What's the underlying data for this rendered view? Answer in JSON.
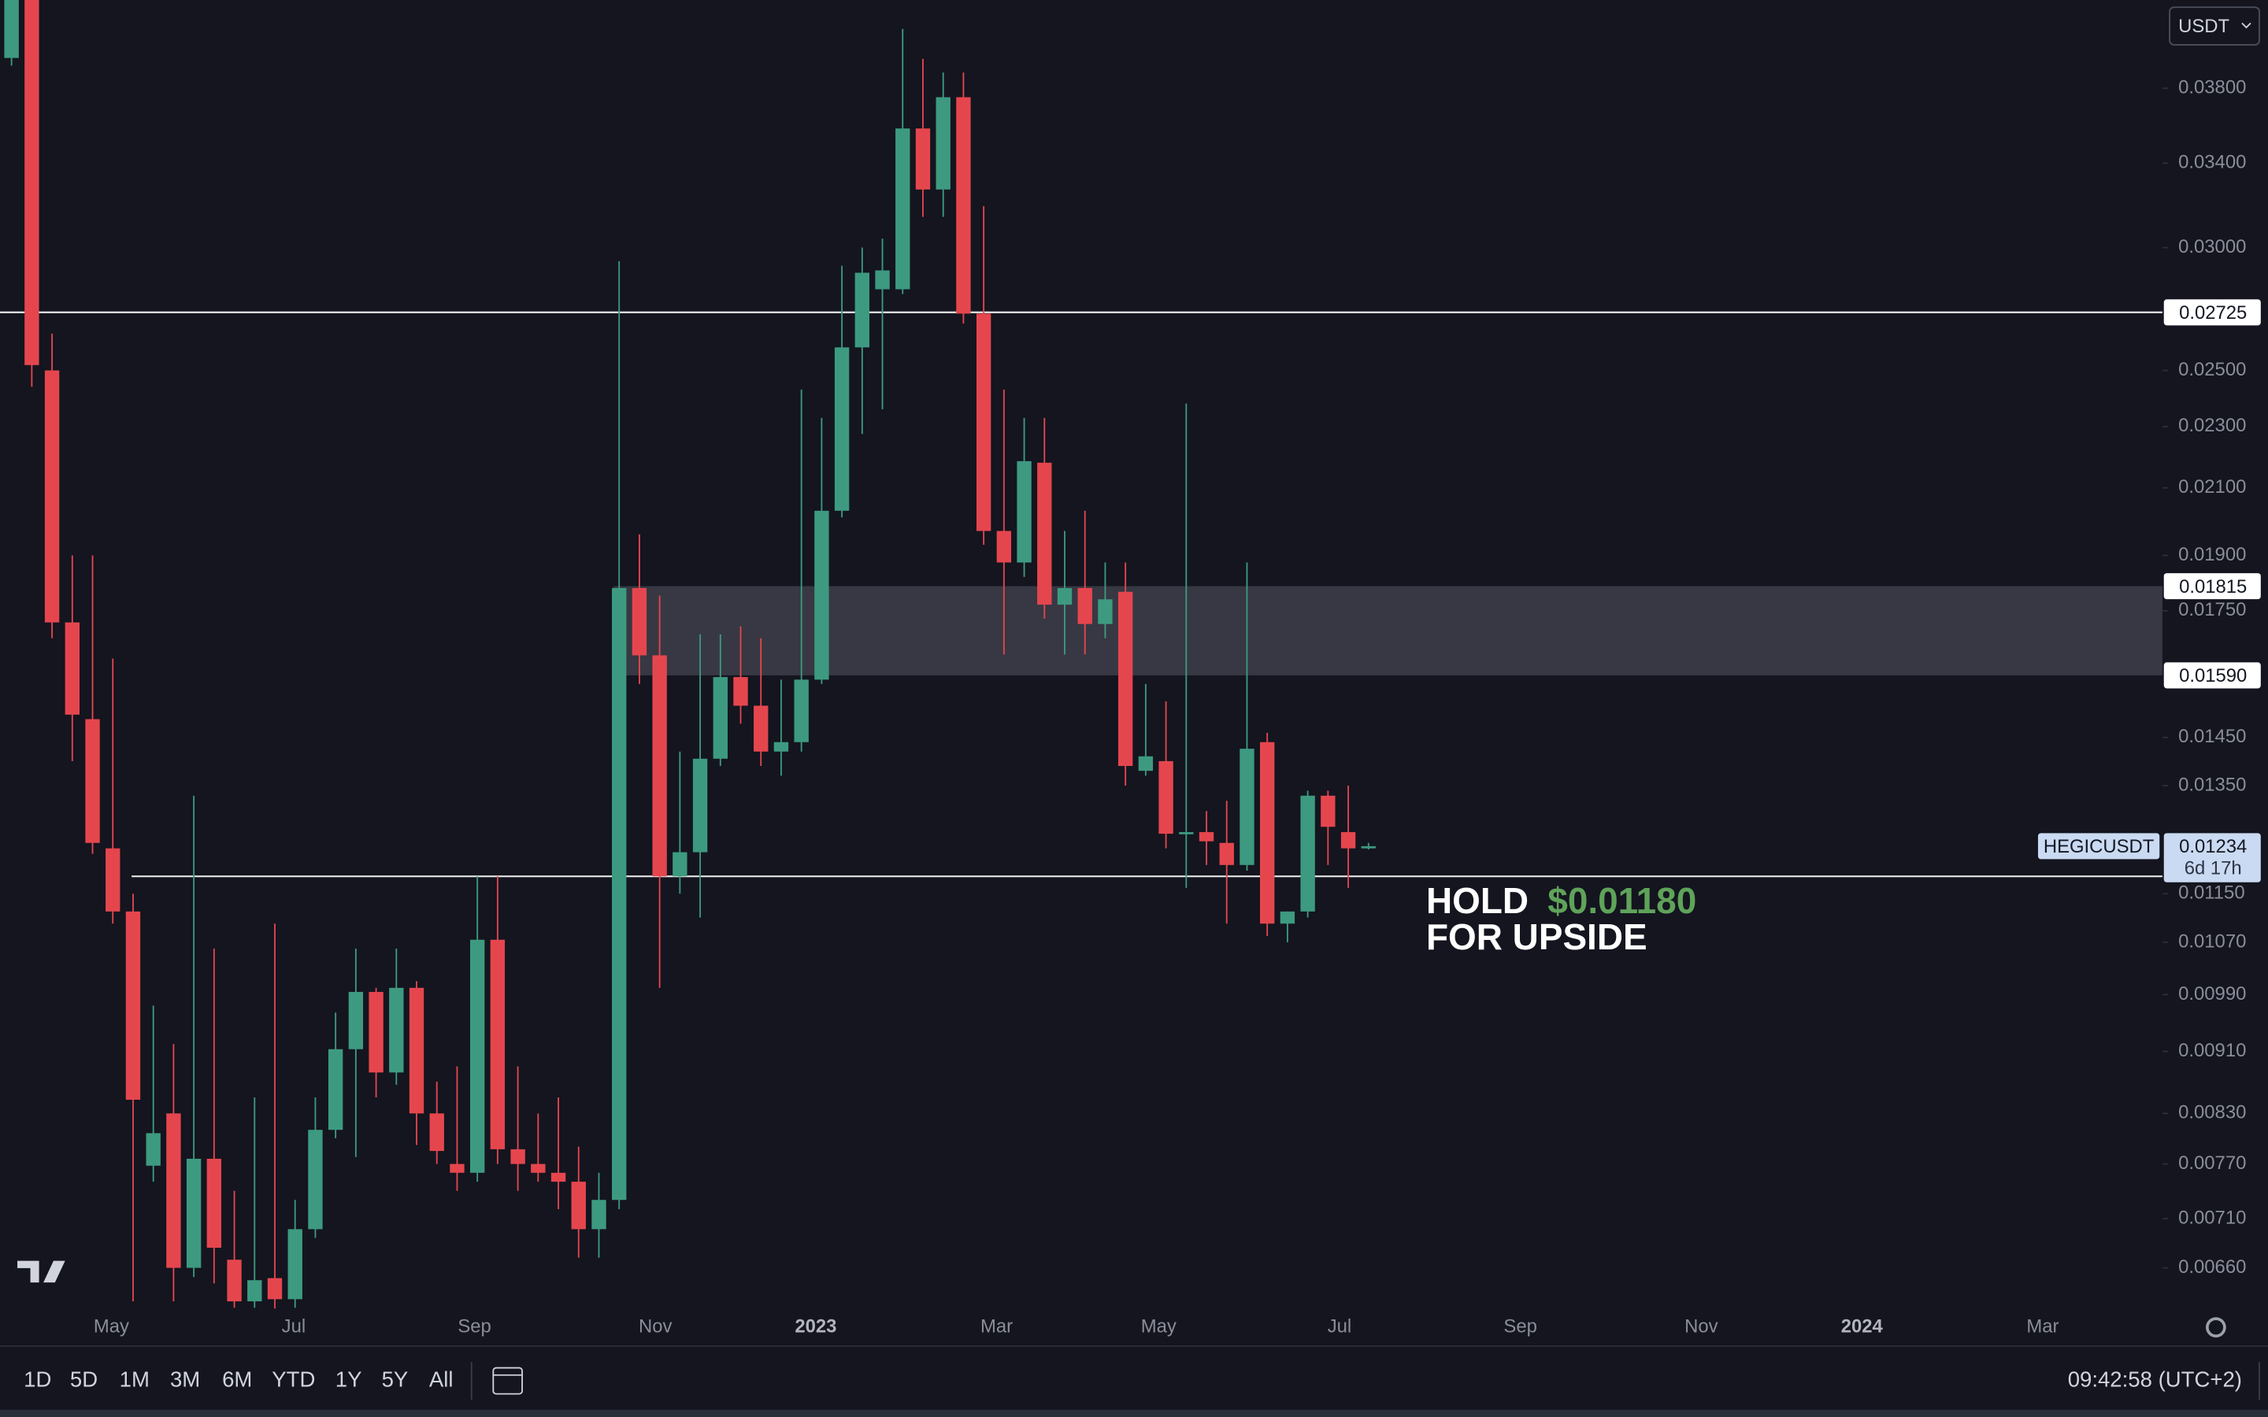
{
  "currency": "USDT",
  "toolbar": {
    "ranges": [
      "1D",
      "5D",
      "1M",
      "3M",
      "6M",
      "YTD",
      "1Y",
      "5Y",
      "All"
    ],
    "time": "09:42:58 (UTC+2)"
  },
  "chart_data": {
    "type": "candlestick",
    "open": [
      0.03975,
      0.045,
      0.025,
      0.0172,
      0.0149,
      0.0123,
      0.0112,
      0.00768,
      0.0083,
      0.0066,
      0.00776,
      0.00668,
      0.00628,
      0.0065,
      0.0063,
      0.00699,
      0.0081,
      0.00913,
      0.00994,
      0.00882,
      0.01,
      0.0083,
      0.0077,
      0.0076,
      0.01074,
      0.00787,
      0.0077,
      0.0076,
      0.0075,
      0.00699,
      0.0073,
      0.0181,
      0.01638,
      0.0118,
      0.01223,
      0.01405,
      0.01586,
      0.0152,
      0.0142,
      0.0144,
      0.0158,
      0.0203,
      0.02587,
      0.0282,
      0.0282,
      0.0358,
      0.0327,
      0.0375,
      0.0272,
      0.0197,
      0.0188,
      0.0218,
      0.01766,
      0.0181,
      0.01716,
      0.018,
      0.0138,
      0.014,
      0.01257,
      0.0126,
      0.0124,
      0.012,
      0.0144,
      0.011,
      0.0112,
      0.0133,
      0.0126,
      0.0123
    ],
    "high": [
      0.046,
      0.046,
      0.0264,
      0.019,
      0.019,
      0.0163,
      0.0115,
      0.00974,
      0.0092,
      0.0133,
      0.0106,
      0.0074,
      0.0085,
      0.011,
      0.0073,
      0.0085,
      0.00964,
      0.0106,
      0.01,
      0.0106,
      0.0101,
      0.0087,
      0.0089,
      0.0118,
      0.0118,
      0.0089,
      0.0083,
      0.0085,
      0.0079,
      0.0076,
      0.0294,
      0.0196,
      0.0179,
      0.0142,
      0.0169,
      0.0169,
      0.0171,
      0.0168,
      0.0158,
      0.0243,
      0.0233,
      0.0292,
      0.03,
      0.0304,
      0.0415,
      0.0397,
      0.0389,
      0.0389,
      0.0319,
      0.0243,
      0.0233,
      0.0233,
      0.0197,
      0.0203,
      0.0188,
      0.0188,
      0.0157,
      0.0153,
      0.0238,
      0.013,
      0.0132,
      0.0188,
      0.0146,
      0.0112,
      0.0134,
      0.0134,
      0.0135,
      0.0124
    ],
    "low": [
      0.0393,
      0.0244,
      0.0168,
      0.014,
      0.0122,
      0.011,
      0.00628,
      0.0075,
      0.00628,
      0.00651,
      0.00645,
      0.00622,
      0.00622,
      0.0062,
      0.00622,
      0.0069,
      0.008,
      0.00778,
      0.0085,
      0.00866,
      0.00792,
      0.0077,
      0.0074,
      0.0075,
      0.0077,
      0.0074,
      0.0075,
      0.0072,
      0.0067,
      0.0067,
      0.0072,
      0.0157,
      0.01,
      0.0115,
      0.0111,
      0.0139,
      0.0148,
      0.0139,
      0.0137,
      0.0142,
      0.0157,
      0.0201,
      0.02275,
      0.0236,
      0.028,
      0.0314,
      0.0314,
      0.0268,
      0.0193,
      0.0164,
      0.0184,
      0.0173,
      0.0164,
      0.0164,
      0.0168,
      0.0135,
      0.0137,
      0.0123,
      0.0116,
      0.012,
      0.011,
      0.0119,
      0.0108,
      0.0107,
      0.0111,
      0.012,
      0.0116,
      0.01228
    ],
    "close": [
      0.045,
      0.0252,
      0.0172,
      0.015,
      0.0124,
      0.0112,
      0.00847,
      0.00806,
      0.0066,
      0.00776,
      0.0068,
      0.00628,
      0.00648,
      0.0063,
      0.00699,
      0.0081,
      0.00913,
      0.00994,
      0.00882,
      0.01,
      0.0083,
      0.00785,
      0.0076,
      0.01074,
      0.00787,
      0.0077,
      0.0076,
      0.0075,
      0.00699,
      0.0073,
      0.0181,
      0.01638,
      0.0118,
      0.01223,
      0.01405,
      0.01586,
      0.0152,
      0.0142,
      0.0144,
      0.0158,
      0.0203,
      0.02587,
      0.0289,
      0.029,
      0.0358,
      0.0327,
      0.0375,
      0.0272,
      0.0197,
      0.0188,
      0.02185,
      0.01766,
      0.0181,
      0.01716,
      0.0178,
      0.0139,
      0.0141,
      0.01257,
      0.0126,
      0.01243,
      0.012,
      0.01426,
      0.011,
      0.0112,
      0.0133,
      0.0127,
      0.0123,
      0.01234
    ],
    "up_color": "#3d9a80",
    "down_color": "#e5464e",
    "log_scale": true,
    "ylim": [
      0.006213,
      0.04332
    ],
    "yticks": [
      {
        "value": 0.038,
        "label": "0.03800"
      },
      {
        "value": 0.034,
        "label": "0.03400"
      },
      {
        "value": 0.03,
        "label": "0.03000"
      },
      {
        "value": 0.025,
        "label": "0.02500"
      },
      {
        "value": 0.023,
        "label": "0.02300"
      },
      {
        "value": 0.021,
        "label": "0.02100"
      },
      {
        "value": 0.019,
        "label": "0.01900"
      },
      {
        "value": 0.0175,
        "label": "0.01750"
      },
      {
        "value": 0.0145,
        "label": "0.01450"
      },
      {
        "value": 0.0135,
        "label": "0.01350"
      },
      {
        "value": 0.0115,
        "label": "0.01150"
      },
      {
        "value": 0.0107,
        "label": "0.01070"
      },
      {
        "value": 0.0099,
        "label": "0.00990"
      },
      {
        "value": 0.0091,
        "label": "0.00910"
      },
      {
        "value": 0.0083,
        "label": "0.00830"
      },
      {
        "value": 0.0077,
        "label": "0.00770"
      },
      {
        "value": 0.0071,
        "label": "0.00710"
      },
      {
        "value": 0.0066,
        "label": "0.00660"
      }
    ],
    "xlim": [
      -0.57,
      106.2
    ],
    "xticks": [
      {
        "value": 4.93,
        "label": "May"
      },
      {
        "value": 13.93,
        "label": "Jul"
      },
      {
        "value": 22.86,
        "label": "Sep"
      },
      {
        "value": 31.79,
        "label": "Nov"
      },
      {
        "value": 39.71,
        "label": "2023"
      },
      {
        "value": 48.64,
        "label": "Mar"
      },
      {
        "value": 56.64,
        "label": "May"
      },
      {
        "value": 65.57,
        "label": "Jul"
      },
      {
        "value": 74.5,
        "label": "Sep"
      },
      {
        "value": 83.43,
        "label": "Nov"
      },
      {
        "value": 91.36,
        "label": "2024"
      },
      {
        "value": 100.29,
        "label": "Mar"
      }
    ],
    "levels": [
      {
        "value": 0.02725,
        "label": "0.02725"
      },
      {
        "value": 0.0118
      }
    ],
    "zone": {
      "high": {
        "value": 0.01815,
        "label": "0.01815"
      },
      "low": {
        "value": 0.0159,
        "label": "0.01590"
      }
    },
    "price_tag": {
      "value": 0.01234,
      "label": "0.01234",
      "countdown": "6d 17h",
      "symbol": "HEGICUSDT"
    },
    "annotation": {
      "line1": "HOLD",
      "price": "$0.01180",
      "line2": "FOR UPSIDE"
    }
  }
}
